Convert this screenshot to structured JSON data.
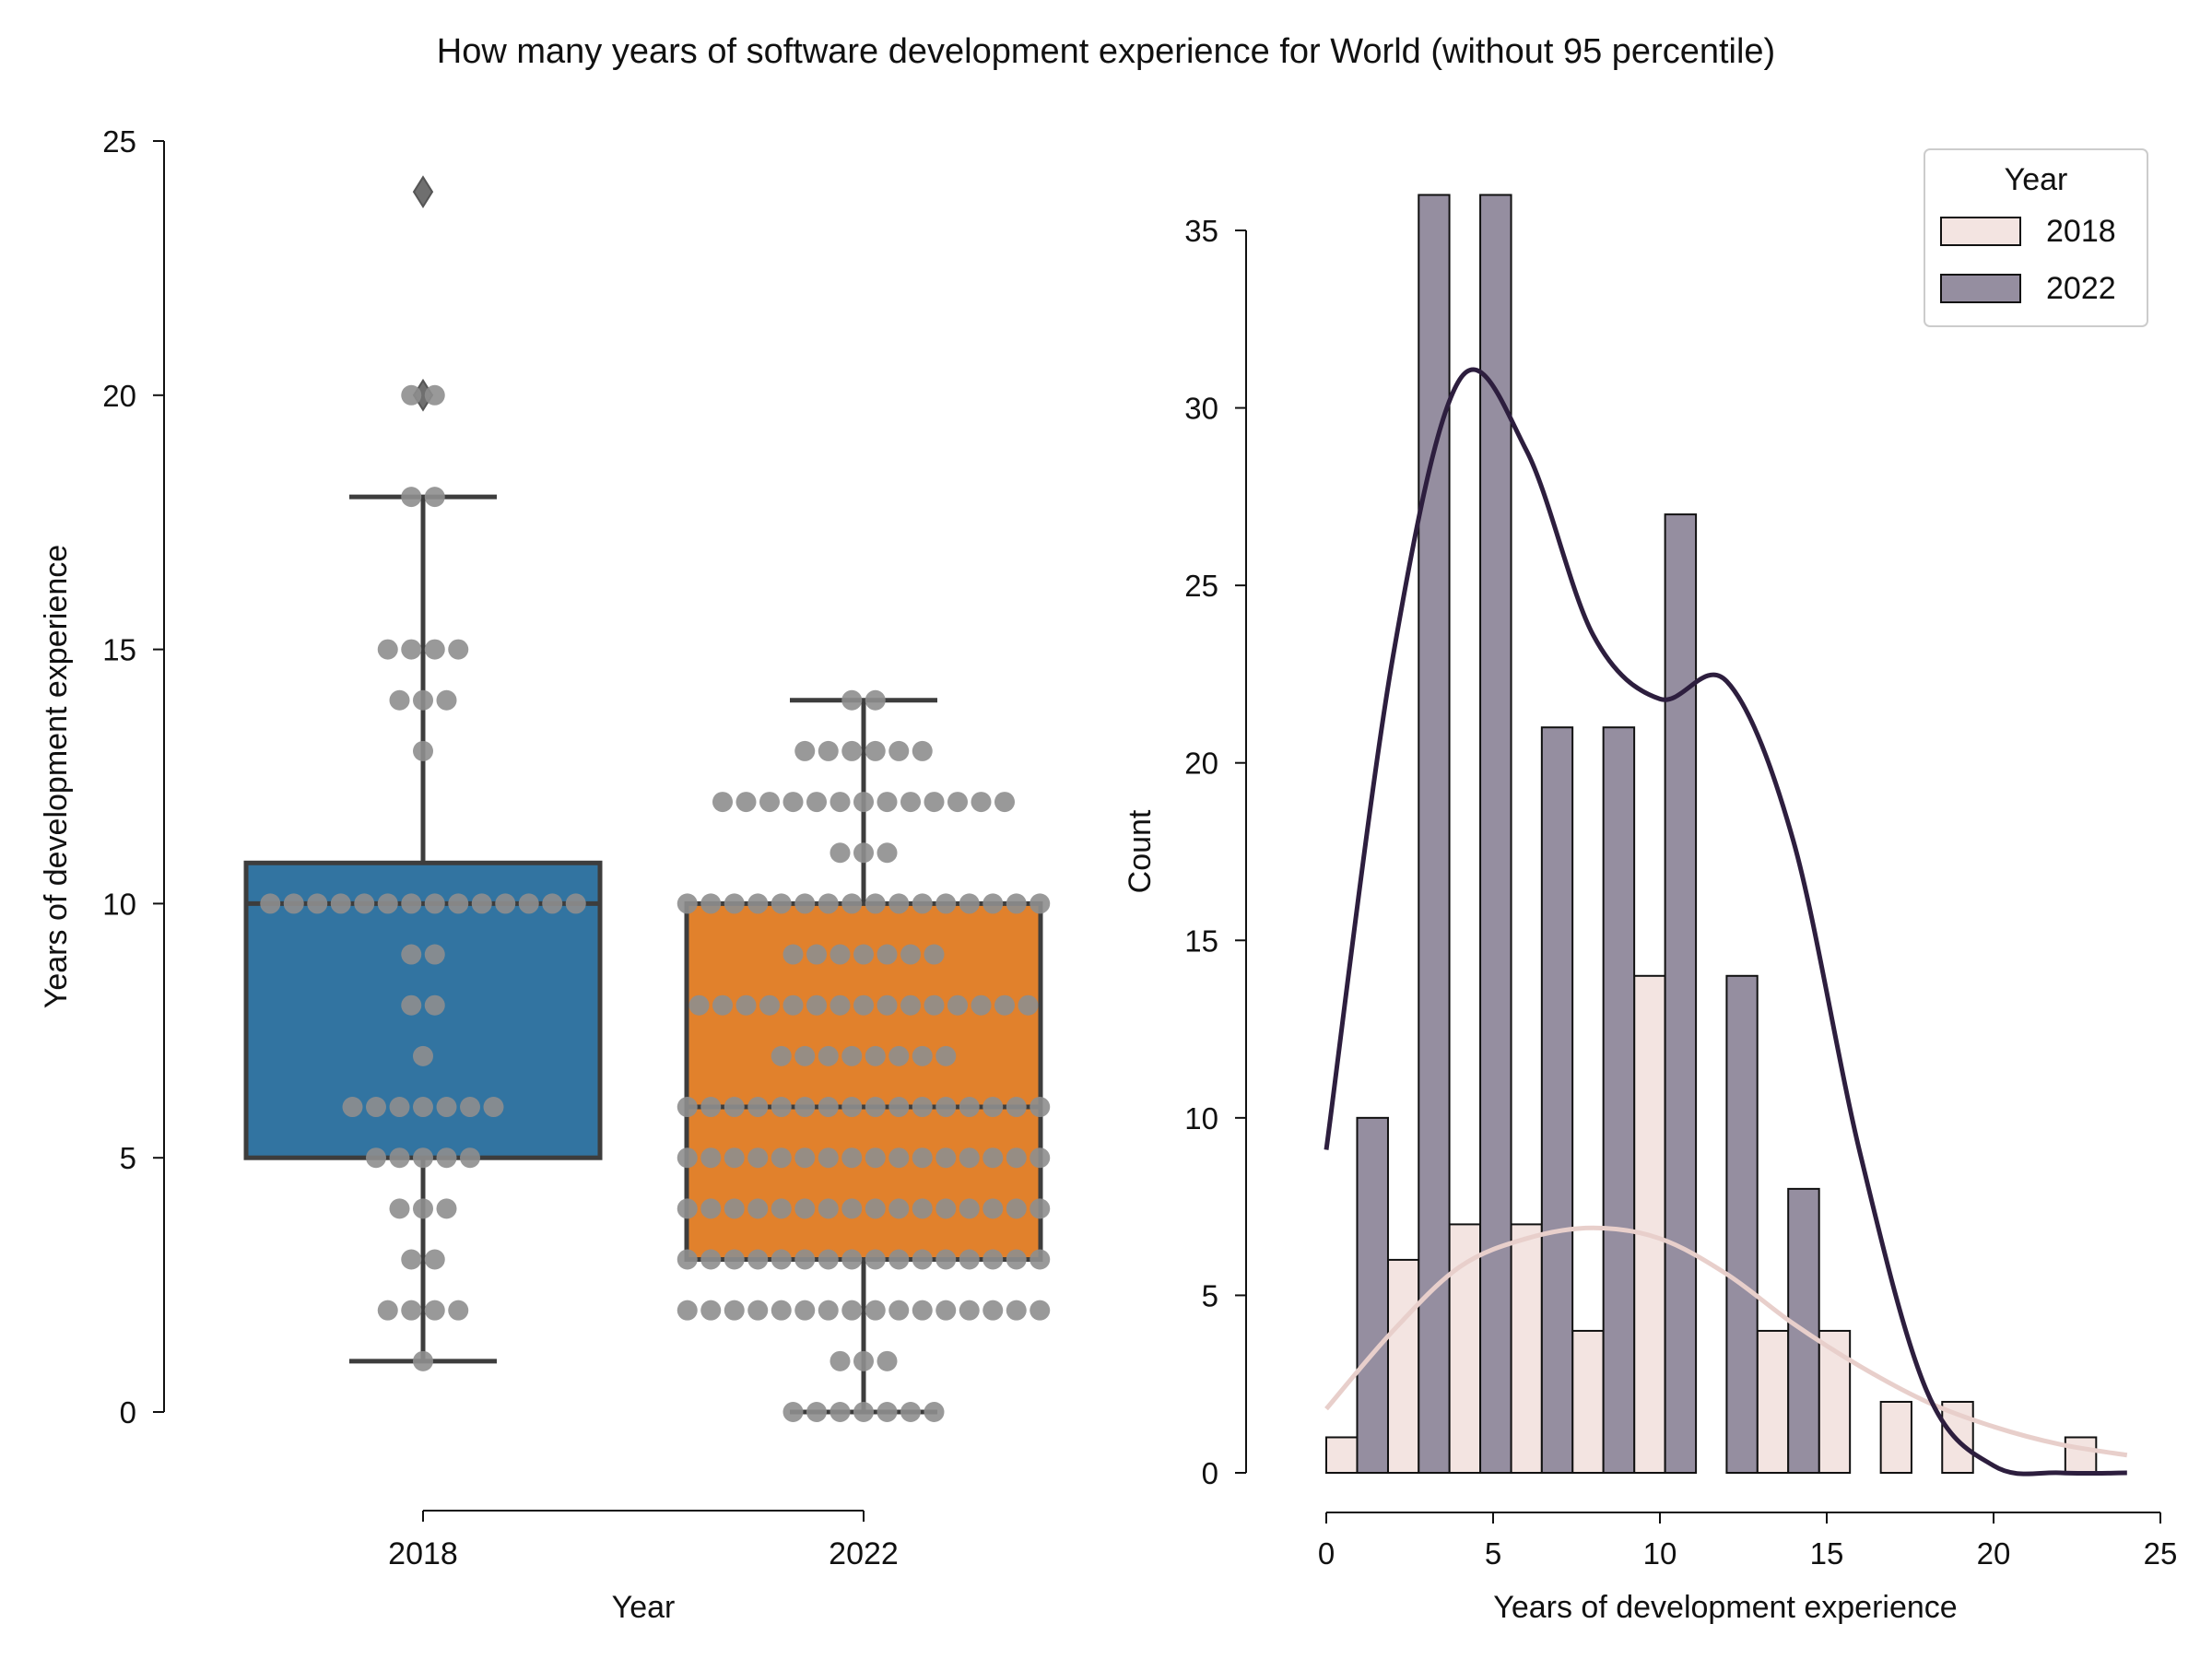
{
  "title": "How many years of software development experience for World (without 95 percentile)",
  "colors": {
    "box_2018": "#3274a1",
    "box_2022": "#e1812c",
    "box_edge": "#3d3d3d",
    "swarm_point": "#8e8e8e",
    "hist_2018": "#f3e4e1",
    "hist_2022": "#958ea0",
    "kde_2018": "#e8cfcb",
    "kde_2022": "#2d1e3e"
  },
  "chart_data": [
    {
      "type": "box",
      "xlabel": "Year",
      "ylabel": "Years of development experience",
      "ylim": [
        0,
        25
      ],
      "yticks": [
        "0",
        "5",
        "10",
        "15",
        "20",
        "25"
      ],
      "categories": [
        "2018",
        "2022"
      ],
      "boxes": [
        {
          "category": "2018",
          "q1": 5,
          "median": 10,
          "q3": 10.8,
          "whisker_low": 1,
          "whisker_high": 18,
          "outliers": [
            20,
            24
          ]
        },
        {
          "category": "2022",
          "q1": 3,
          "median": 6,
          "q3": 10,
          "whisker_low": 0,
          "whisker_high": 14,
          "outliers": []
        }
      ],
      "swarm": [
        {
          "category": "2018",
          "counts": {
            "1": 1,
            "2": 4,
            "3": 2,
            "4": 3,
            "5": 5,
            "6": 7,
            "7": 1,
            "8": 2,
            "9": 2,
            "10": 14,
            "13": 1,
            "14": 3,
            "15": 4,
            "18": 2,
            "20": 2
          }
        },
        {
          "category": "2022",
          "counts": {
            "0": 7,
            "1": 3,
            "2": 16,
            "3": 16,
            "4": 16,
            "5": 16,
            "6": 16,
            "7": 8,
            "8": 15,
            "9": 7,
            "10": 16,
            "11": 3,
            "12": 13,
            "13": 6,
            "14": 2
          }
        }
      ]
    },
    {
      "type": "histogram",
      "xlabel": "Years of development experience",
      "ylabel": "Count",
      "xlim": [
        0,
        25
      ],
      "ylim": [
        0,
        35
      ],
      "xticks": [
        "0",
        "5",
        "10",
        "15",
        "20",
        "25"
      ],
      "yticks": [
        "0",
        "5",
        "10",
        "15",
        "20",
        "25",
        "30",
        "35"
      ],
      "legend": {
        "title": "Year",
        "placement": "top-right"
      },
      "bin_edges": [
        0,
        1.85,
        3.69,
        5.54,
        7.38,
        9.23,
        11.08,
        12.92,
        14.77,
        16.62,
        18.46,
        20.31,
        22.15,
        24
      ],
      "series": [
        {
          "name": "2018",
          "counts": [
            1,
            6,
            7,
            7,
            4,
            14,
            0,
            4,
            4,
            2,
            2,
            0,
            1
          ],
          "kde": [
            1.8,
            4.0,
            5.8,
            6.6,
            6.9,
            6.6,
            5.6,
            4.2,
            3.0,
            2.0,
            1.3,
            0.8,
            0.5
          ]
        },
        {
          "name": "2022",
          "counts": [
            10,
            36,
            36,
            21,
            21,
            27,
            14,
            8,
            0,
            0,
            0,
            0,
            0
          ],
          "kde": [
            9.1,
            23.0,
            30.8,
            28.8,
            23.6,
            21.8,
            22.3,
            17.8,
            9.0,
            2.3,
            0.2,
            0.0,
            0.0
          ]
        }
      ]
    }
  ]
}
